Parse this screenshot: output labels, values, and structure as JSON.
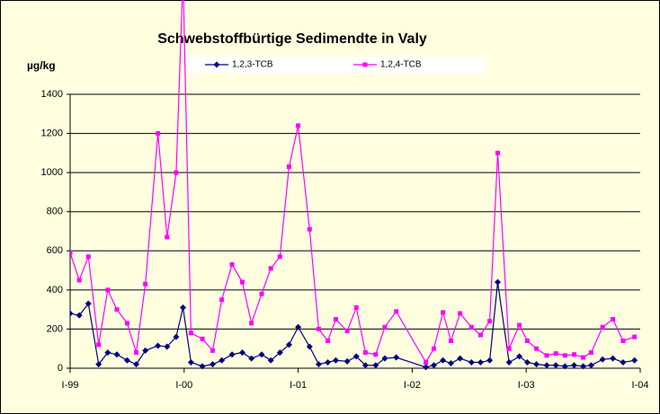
{
  "chart_data": {
    "type": "line",
    "title": "Schwebstoffbürtige Sedimendte in Valy",
    "y_label": "µg/kg",
    "x": [
      1999.0,
      1999.08,
      1999.16,
      1999.25,
      1999.33,
      1999.41,
      1999.5,
      1999.58,
      1999.66,
      1999.77,
      1999.85,
      1999.93,
      1999.99,
      2000.06,
      2000.16,
      2000.25,
      2000.33,
      2000.42,
      2000.51,
      2000.59,
      2000.68,
      2000.76,
      2000.84,
      2000.92,
      2001.0,
      2001.1,
      2001.18,
      2001.26,
      2001.33,
      2001.43,
      2001.51,
      2001.59,
      2001.68,
      2001.76,
      2001.86,
      2002.12,
      2002.19,
      2002.27,
      2002.34,
      2002.42,
      2002.52,
      2002.6,
      2002.68,
      2002.75,
      2002.85,
      2002.94,
      2003.01,
      2003.09,
      2003.18,
      2003.26,
      2003.34,
      2003.42,
      2003.5,
      2003.57,
      2003.67,
      2003.76,
      2003.85,
      2003.95
    ],
    "series": [
      {
        "name": "1,2,3-TCB",
        "color": "#000080",
        "marker": "diamond",
        "values": [
          280,
          270,
          330,
          20,
          80,
          70,
          40,
          20,
          90,
          115,
          110,
          160,
          310,
          30,
          10,
          20,
          40,
          70,
          80,
          50,
          70,
          40,
          80,
          120,
          210,
          110,
          20,
          30,
          40,
          35,
          60,
          15,
          15,
          50,
          55,
          5,
          15,
          40,
          25,
          50,
          30,
          30,
          40,
          440,
          30,
          60,
          30,
          20,
          15,
          15,
          10,
          15,
          10,
          15,
          45,
          50,
          30,
          40
        ]
      },
      {
        "name": "1,2,4-TCB",
        "color": "#ff00ff",
        "marker": "square",
        "values": [
          590,
          450,
          570,
          120,
          400,
          300,
          230,
          80,
          430,
          1200,
          670,
          1000,
          2000,
          180,
          150,
          90,
          350,
          530,
          440,
          230,
          380,
          510,
          570,
          1030,
          1240,
          710,
          200,
          140,
          250,
          190,
          310,
          80,
          70,
          210,
          290,
          30,
          100,
          285,
          140,
          280,
          210,
          170,
          240,
          1100,
          100,
          220,
          140,
          100,
          65,
          75,
          65,
          70,
          55,
          80,
          210,
          250,
          140,
          160
        ]
      }
    ],
    "xlim": [
      1999,
      2004
    ],
    "xticks": [
      {
        "value": 1999,
        "label": "I-99"
      },
      {
        "value": 2000,
        "label": "I-00"
      },
      {
        "value": 2001,
        "label": "I-01"
      },
      {
        "value": 2002,
        "label": "I-02"
      },
      {
        "value": 2003,
        "label": "I-03"
      },
      {
        "value": 2004,
        "label": "I-04"
      }
    ],
    "ylim": [
      0,
      1400
    ],
    "yticks": [
      0,
      200,
      400,
      600,
      800,
      1000,
      1200,
      1400
    ],
    "grid": true
  }
}
